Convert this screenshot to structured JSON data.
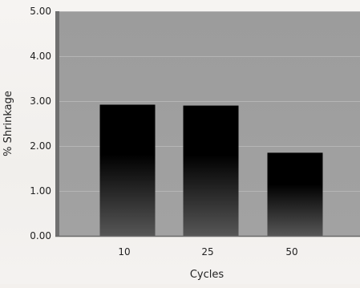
{
  "chart_data": {
    "type": "bar",
    "title": "",
    "xlabel": "Cycles",
    "ylabel": "% Shrinkage",
    "categories": [
      "10",
      "25",
      "50"
    ],
    "values": [
      2.92,
      2.9,
      1.85
    ],
    "ylim": [
      0,
      5
    ],
    "yticks": [
      "0.00",
      "1.00",
      "2.00",
      "3.00",
      "4.00",
      "5.00"
    ],
    "grid": true,
    "legend": "none",
    "colors": {
      "plot_background": "#9c9c9c",
      "gridline": "#b5b5b5",
      "axis": "#6f6f6f",
      "bar_top": "#000000",
      "bar_bottom": "#565656"
    }
  }
}
